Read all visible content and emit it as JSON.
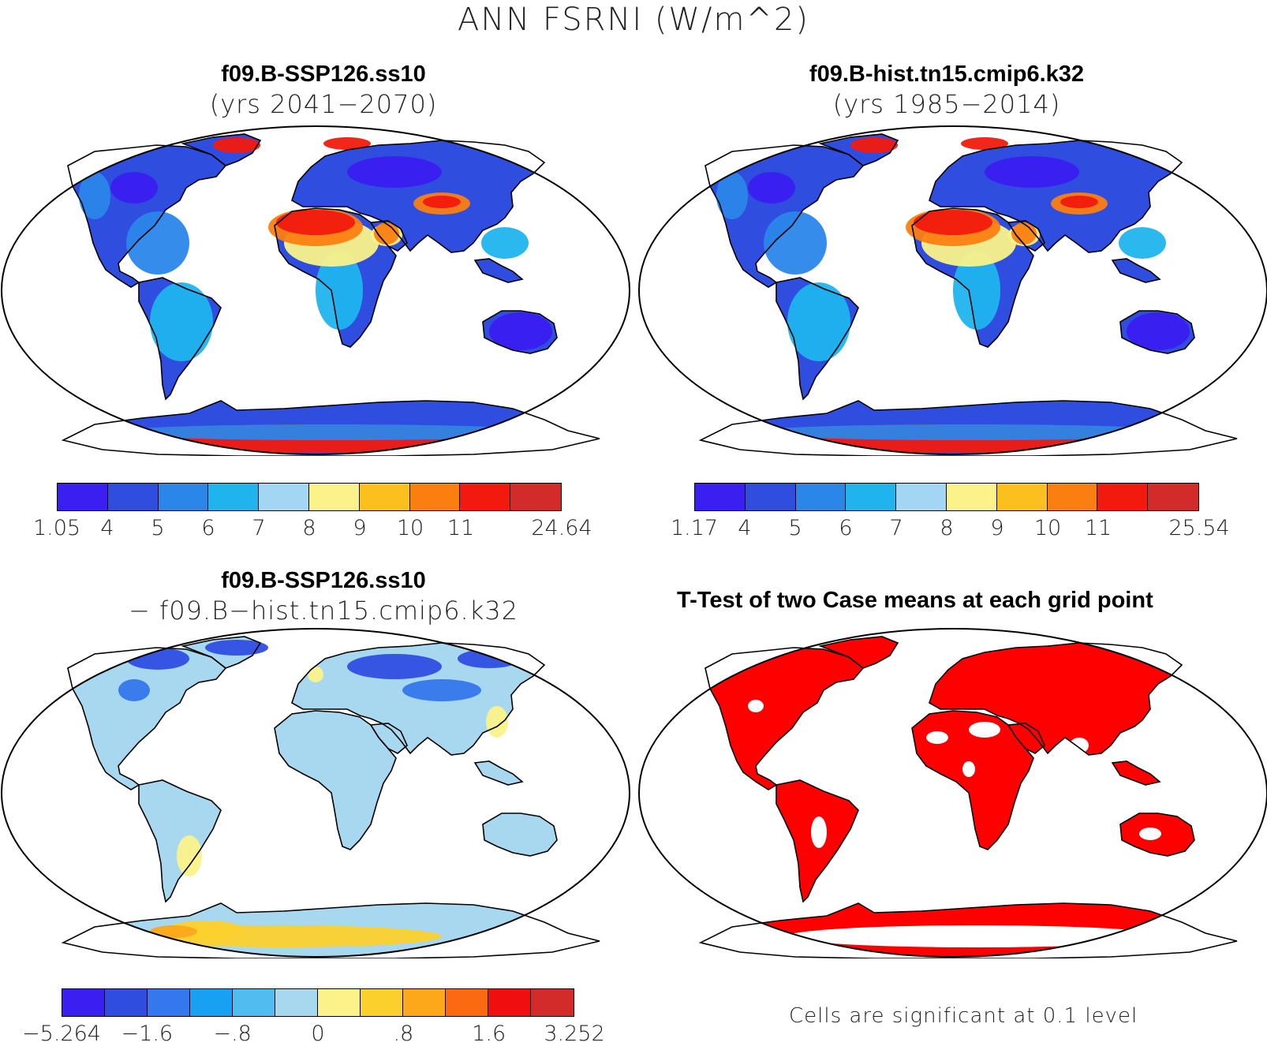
{
  "title": "ANN FSRNI (W/m^2)",
  "panels": {
    "top_left": {
      "line1": "f09.B-SSP126.ss10",
      "line2": "(yrs 2041−2070)",
      "colorbar": {
        "labels": [
          "1.05",
          "4",
          "5",
          "6",
          "7",
          "8",
          "9",
          "10",
          "11",
          "24.64"
        ],
        "colors": [
          "#3b1ef0",
          "#2f4ee0",
          "#2b86ea",
          "#1fb4ee",
          "#a3d6f2",
          "#fbf28a",
          "#fcc01e",
          "#fb7f10",
          "#f21a0e",
          "#d32a2a"
        ]
      }
    },
    "top_right": {
      "line1": "f09.B-hist.tn15.cmip6.k32",
      "line2": "(yrs 1985−2014)",
      "colorbar": {
        "labels": [
          "1.17",
          "4",
          "5",
          "6",
          "7",
          "8",
          "9",
          "10",
          "11",
          "25.54"
        ],
        "colors": [
          "#3b1ef0",
          "#2f4ee0",
          "#2b86ea",
          "#1fb4ee",
          "#a3d6f2",
          "#fbf28a",
          "#fcc01e",
          "#fb7f10",
          "#f21a0e",
          "#d32a2a"
        ]
      }
    },
    "bottom_left": {
      "line1": "f09.B-SSP126.ss10",
      "line2": "− f09.B−hist.tn15.cmip6.k32",
      "colorbar": {
        "labels": [
          "−5.264",
          "−1.6",
          "−.8",
          "0",
          ".8",
          "1.6",
          "3.252"
        ],
        "label_positions": [
          0,
          2,
          4,
          6,
          8,
          10,
          12
        ],
        "colors": [
          "#3b1ef0",
          "#2f4ee0",
          "#3577ec",
          "#18a0f2",
          "#4fbdf0",
          "#a8d8f0",
          "#fbf28a",
          "#fcd02c",
          "#fca81a",
          "#fb6a10",
          "#f00e0e",
          "#d32a2a"
        ]
      }
    },
    "bottom_right": {
      "title": "T-Test of two Case means at each grid point",
      "note": "Cells are significant at 0.1 level",
      "fill_color": "#ff0000"
    }
  }
}
